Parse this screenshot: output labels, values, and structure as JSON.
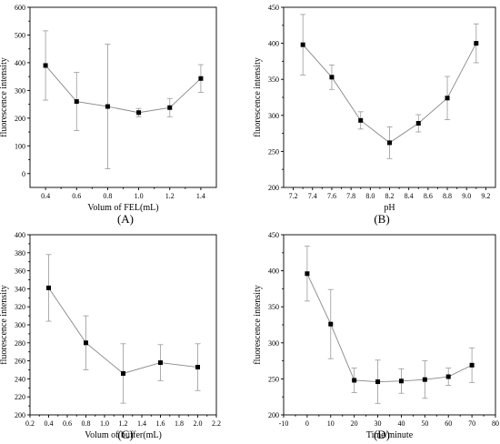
{
  "chart_data": [
    {
      "type": "line",
      "panel_label": "(A)",
      "xlabel": "Volum of FEL(mL)",
      "ylabel": "fluorescence intensity",
      "xlim": [
        0.3,
        1.5
      ],
      "ylim": [
        -50,
        600
      ],
      "xticks": [
        0.4,
        0.6,
        0.8,
        1.0,
        1.2,
        1.4
      ],
      "yticks": [
        0,
        100,
        200,
        300,
        400,
        500,
        600
      ],
      "xticklabels": [
        "0.4",
        "0.6",
        "0.8",
        "1.0",
        "1.2",
        "1.4"
      ],
      "yticklabels": [
        "0",
        "100",
        "200",
        "300",
        "400",
        "500",
        "600"
      ],
      "x": [
        0.4,
        0.6,
        0.8,
        1.0,
        1.2,
        1.4
      ],
      "y": [
        390,
        260,
        242,
        220,
        238,
        343
      ],
      "err": [
        125,
        105,
        225,
        15,
        33,
        50
      ]
    },
    {
      "type": "line",
      "panel_label": "(B)",
      "xlabel": "pH",
      "ylabel": "fluorescence intensity",
      "xlim": [
        7.1,
        9.3
      ],
      "ylim": [
        200,
        450
      ],
      "xticks": [
        7.2,
        7.4,
        7.6,
        7.8,
        8.0,
        8.2,
        8.4,
        8.6,
        8.8,
        9.0,
        9.2
      ],
      "yticks": [
        200,
        250,
        300,
        350,
        400,
        450
      ],
      "xticklabels": [
        "7.2",
        "7.4",
        "7.6",
        "7.8",
        "8.0",
        "8.2",
        "8.4",
        "8.6",
        "8.8",
        "9.0",
        "9.2"
      ],
      "yticklabels": [
        "200",
        "250",
        "300",
        "350",
        "400",
        "450"
      ],
      "x": [
        7.3,
        7.6,
        7.9,
        8.2,
        8.5,
        8.8,
        9.1
      ],
      "y": [
        398,
        353,
        293,
        262,
        289,
        324,
        400
      ],
      "err": [
        42,
        17,
        12,
        22,
        12,
        30,
        27
      ]
    },
    {
      "type": "line",
      "panel_label": "(C)",
      "xlabel": "Volum of buffer(mL)",
      "ylabel": "fluorescence intensity",
      "xlim": [
        0.2,
        2.2
      ],
      "ylim": [
        200,
        400
      ],
      "xticks": [
        0.2,
        0.4,
        0.6,
        0.8,
        1.0,
        1.2,
        1.4,
        1.6,
        1.8,
        2.0,
        2.2
      ],
      "yticks": [
        200,
        220,
        240,
        260,
        280,
        300,
        320,
        340,
        360,
        380,
        400
      ],
      "xticklabels": [
        "0.2",
        "0.4",
        "0.6",
        "0.8",
        "1.0",
        "1.2",
        "1.4",
        "1.6",
        "1.8",
        "2.0",
        "2.2"
      ],
      "yticklabels": [
        "200",
        "220",
        "240",
        "260",
        "280",
        "300",
        "320",
        "340",
        "360",
        "380",
        "400"
      ],
      "x": [
        0.4,
        0.8,
        1.2,
        1.6,
        2.0
      ],
      "y": [
        341,
        280,
        246,
        258,
        253
      ],
      "err": [
        37,
        30,
        33,
        20,
        26
      ]
    },
    {
      "type": "line",
      "panel_label": "(D)",
      "xlabel": "Time/minute",
      "ylabel": "fluorescence intensity",
      "xlim": [
        -10,
        80
      ],
      "ylim": [
        200,
        450
      ],
      "xticks": [
        -10,
        0,
        10,
        20,
        30,
        40,
        50,
        60,
        70,
        80
      ],
      "yticks": [
        200,
        250,
        300,
        350,
        400,
        450
      ],
      "xticklabels": [
        "-10",
        "0",
        "10",
        "20",
        "30",
        "40",
        "50",
        "60",
        "70",
        "80"
      ],
      "yticklabels": [
        "200",
        "250",
        "300",
        "350",
        "400",
        "450"
      ],
      "x": [
        0,
        10,
        20,
        30,
        40,
        50,
        60,
        70
      ],
      "y": [
        396,
        326,
        248,
        246,
        247,
        249,
        253,
        269
      ],
      "err": [
        38,
        48,
        17,
        30,
        17,
        26,
        12,
        24
      ]
    }
  ]
}
